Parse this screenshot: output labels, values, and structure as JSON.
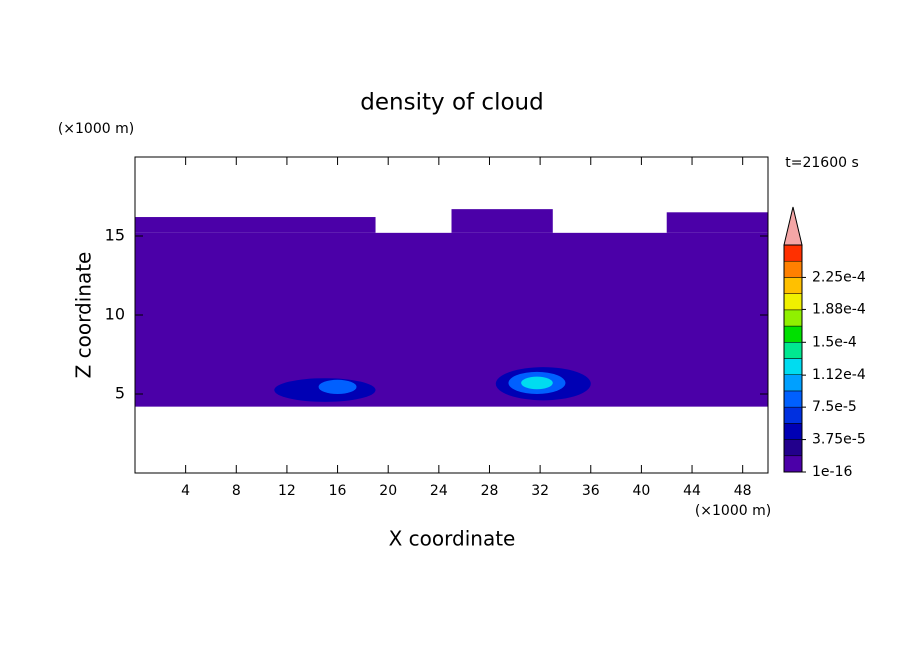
{
  "chart_data": {
    "type": "contour",
    "title": "density of cloud",
    "x_label": "X coordinate",
    "y_label": "Z coordinate",
    "x_unit": "(×1000 m)",
    "y_unit": "(×1000 m)",
    "annotation": "t=21600 s",
    "xlim": [
      0,
      50
    ],
    "xticks": [
      4,
      8,
      12,
      16,
      20,
      24,
      28,
      32,
      36,
      40,
      44,
      48
    ],
    "ylim": [
      0,
      20
    ],
    "yticks": [
      5,
      10,
      15
    ],
    "levels": [
      1e-16,
      1.875e-05,
      3.75e-05,
      5.625e-05,
      7.5e-05,
      9.375e-05,
      0.0001125,
      0.00013125,
      0.00015,
      0.00016875,
      0.0001875,
      0.00020625,
      0.000225,
      0.00024375,
      0.0002625
    ],
    "colors": [
      "#4b00a8",
      "#22008c",
      "#0000b4",
      "#0030e0",
      "#0060ff",
      "#00a0ff",
      "#00dcf0",
      "#00e890",
      "#00e000",
      "#90f000",
      "#f0f000",
      "#ffc000",
      "#ff8000",
      "#ff3000"
    ],
    "extend_color": "#f4a6a6",
    "colorbar_ticks": [
      {
        "value": 1e-16,
        "label": "1e-16"
      },
      {
        "value": 3.75e-05,
        "label": "3.75e-5"
      },
      {
        "value": 7.5e-05,
        "label": "7.5e-5"
      },
      {
        "value": 0.000112,
        "label": "1.12e-4"
      },
      {
        "value": 0.00015,
        "label": "1.5e-4"
      },
      {
        "value": 0.000188,
        "label": "1.88e-4"
      },
      {
        "value": 0.000225,
        "label": "2.25e-4"
      }
    ],
    "cells": [
      {
        "x": [
          0,
          50
        ],
        "y": [
          4.2,
          15.2
        ],
        "value": 1e-16
      },
      {
        "x": [
          0,
          19
        ],
        "y": [
          15.2,
          16.2
        ],
        "value": 1e-16
      },
      {
        "x": [
          25,
          33
        ],
        "y": [
          15.2,
          16.7
        ],
        "value": 1e-16
      },
      {
        "x": [
          42,
          50
        ],
        "y": [
          15.2,
          16.5
        ],
        "value": 1e-16
      },
      {
        "x": [
          11,
          19
        ],
        "y": [
          4.5,
          6.0
        ],
        "value": 3.75e-05
      },
      {
        "x": [
          14.5,
          17.5
        ],
        "y": [
          5.0,
          5.9
        ],
        "value": 7.5e-05
      },
      {
        "x": [
          28.5,
          36
        ],
        "y": [
          4.6,
          6.7
        ],
        "value": 3.75e-05
      },
      {
        "x": [
          29.5,
          34
        ],
        "y": [
          5.0,
          6.4
        ],
        "value": 7.5e-05
      },
      {
        "x": [
          30.5,
          33
        ],
        "y": [
          5.3,
          6.1
        ],
        "value": 0.0001125
      }
    ]
  }
}
